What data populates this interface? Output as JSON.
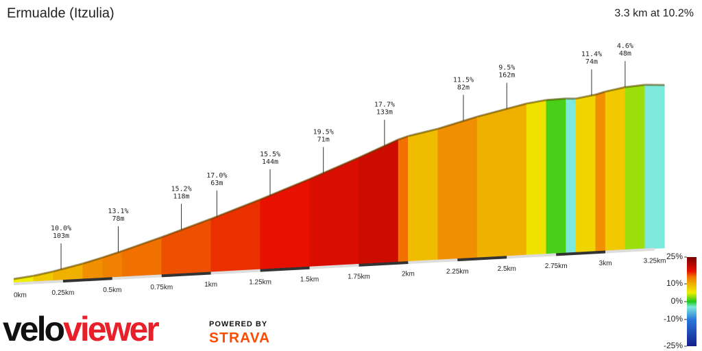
{
  "chart_data": {
    "type": "profile",
    "title": "Ermualde (Itzulia)",
    "subtitle": "3.3 km at 10.2%",
    "distances": [
      0,
      0.1,
      0.2,
      0.35,
      0.45,
      0.55,
      0.75,
      1.0,
      1.25,
      1.5,
      1.75,
      1.95,
      2.0,
      2.15,
      2.35,
      2.6,
      2.7,
      2.8,
      2.85,
      2.95,
      3.0,
      3.1,
      3.2,
      3.3
    ],
    "grades": [
      5,
      8,
      10,
      12,
      13,
      14,
      15,
      16,
      17,
      18,
      19,
      14,
      9,
      12,
      10,
      6,
      1,
      -3,
      7,
      12,
      8,
      3,
      -3
    ],
    "xlim": [
      0,
      3.3
    ],
    "xticks": [
      {
        "value": 0,
        "label": "0km"
      },
      {
        "value": 0.25,
        "label": "0.25km"
      },
      {
        "value": 0.5,
        "label": "0.5km"
      },
      {
        "value": 0.75,
        "label": "0.75km"
      },
      {
        "value": 1,
        "label": "1km"
      },
      {
        "value": 1.25,
        "label": "1.25km"
      },
      {
        "value": 1.5,
        "label": "1.5km"
      },
      {
        "value": 1.75,
        "label": "1.75km"
      },
      {
        "value": 2,
        "label": "2km"
      },
      {
        "value": 2.25,
        "label": "2.25km"
      },
      {
        "value": 2.5,
        "label": "2.5km"
      },
      {
        "value": 2.75,
        "label": "2.75km"
      },
      {
        "value": 3,
        "label": "3km"
      },
      {
        "value": 3.25,
        "label": "3.25km"
      }
    ],
    "annotations": [
      {
        "x": 0.24,
        "grade": "10.0%",
        "length": "103m"
      },
      {
        "x": 0.53,
        "grade": "13.1%",
        "length": "78m"
      },
      {
        "x": 0.85,
        "grade": "15.2%",
        "length": "118m"
      },
      {
        "x": 1.03,
        "grade": "17.0%",
        "length": "63m"
      },
      {
        "x": 1.3,
        "grade": "15.5%",
        "length": "144m"
      },
      {
        "x": 1.57,
        "grade": "19.5%",
        "length": "71m"
      },
      {
        "x": 1.88,
        "grade": "17.7%",
        "length": "133m"
      },
      {
        "x": 2.28,
        "grade": "11.5%",
        "length": "82m"
      },
      {
        "x": 2.5,
        "grade": "9.5%",
        "length": "162m"
      },
      {
        "x": 2.93,
        "grade": "11.4%",
        "length": "74m"
      },
      {
        "x": 3.1,
        "grade": "4.6%",
        "length": "48m"
      }
    ],
    "color_lim": [
      -25,
      25
    ],
    "color_ticks": [
      {
        "value": 25,
        "label": "25%"
      },
      {
        "value": 10,
        "label": "10%"
      },
      {
        "value": 0,
        "label": "0%"
      },
      {
        "value": -10,
        "label": "-10%"
      },
      {
        "value": -25,
        "label": "-25%"
      }
    ]
  },
  "branding": {
    "logo_velo": "velo",
    "logo_viewer": "viewer",
    "powered": "POWERED BY",
    "strava": "STRAVA"
  }
}
